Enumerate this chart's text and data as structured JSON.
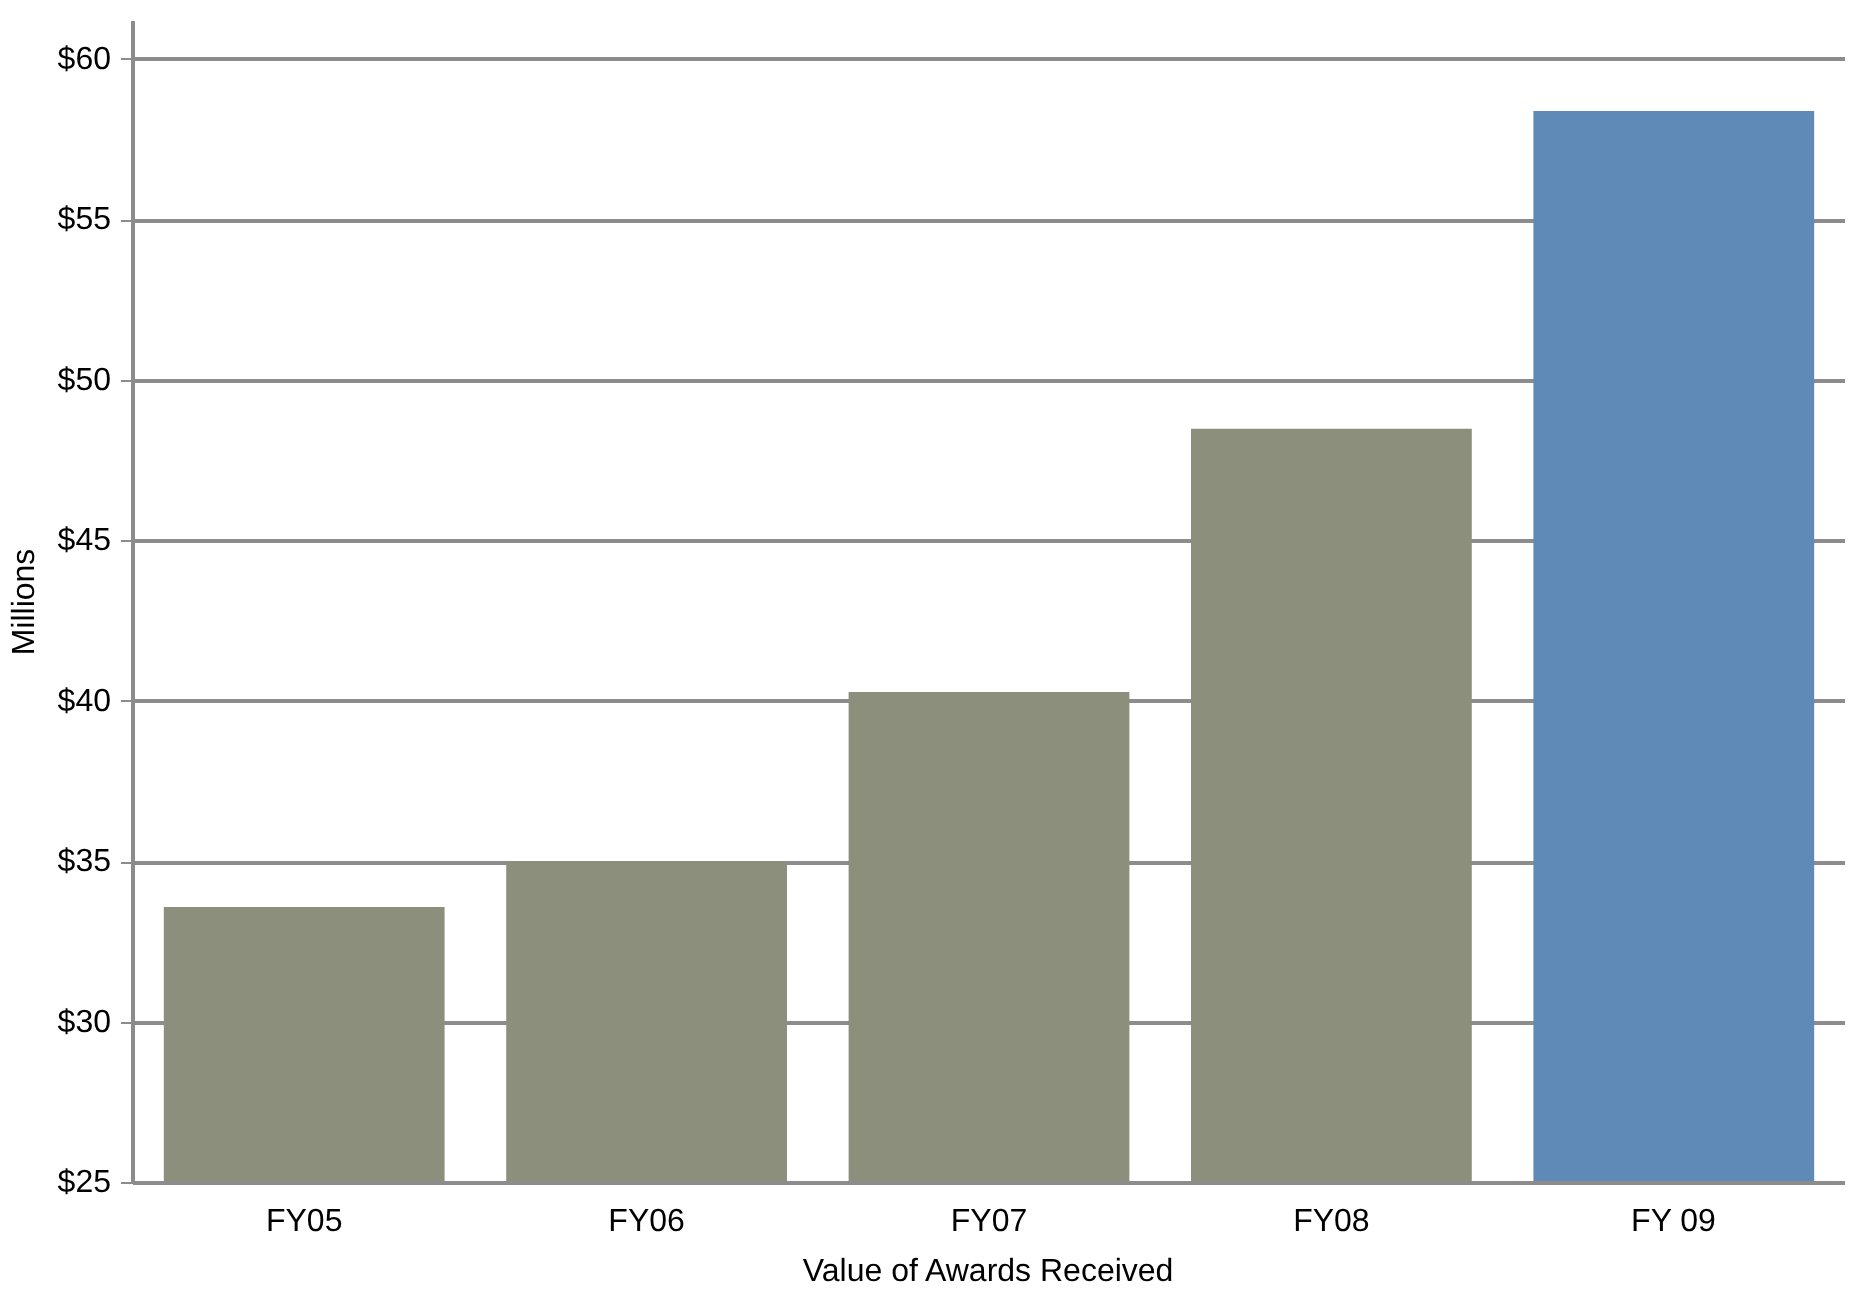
{
  "chart_data": {
    "type": "bar",
    "xlabel": "Value of Awards Received",
    "ylabel": "Millions",
    "categories": [
      "FY05",
      "FY06",
      "FY07",
      "FY08",
      "FY 09"
    ],
    "values": [
      33.6,
      35.0,
      40.3,
      48.5,
      58.4
    ],
    "colors": [
      "#8c8f7c",
      "#8c8f7c",
      "#8c8f7c",
      "#8c8f7c",
      "#5f8ab8"
    ],
    "ylim": [
      25,
      61.2
    ],
    "yticks": [
      {
        "value": 25,
        "label": "$25"
      },
      {
        "value": 30,
        "label": "$30"
      },
      {
        "value": 35,
        "label": "$35"
      },
      {
        "value": 40,
        "label": "$40"
      },
      {
        "value": 45,
        "label": "$45"
      },
      {
        "value": 50,
        "label": "$50"
      },
      {
        "value": 55,
        "label": "$55"
      },
      {
        "value": 60,
        "label": "$60"
      }
    ],
    "grid": "y"
  }
}
